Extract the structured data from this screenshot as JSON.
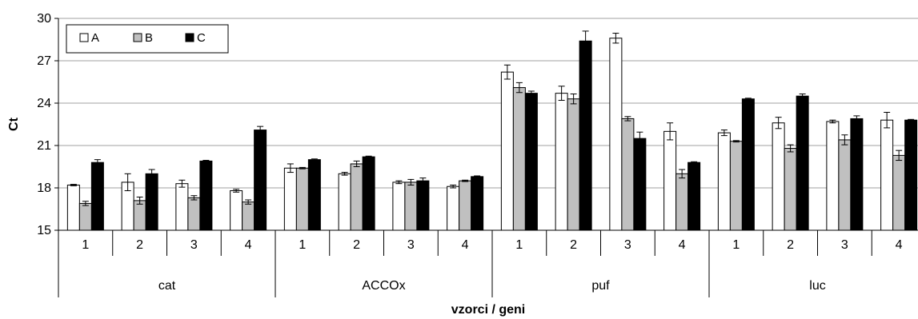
{
  "chart_data": {
    "type": "bar",
    "title": "",
    "xlabel": "vzorci / geni",
    "ylabel": "Ct",
    "ylim": [
      15,
      30
    ],
    "yticks": [
      "15",
      "18",
      "21",
      "24",
      "27",
      "30"
    ],
    "grid": "horizontal",
    "legend_position": "top-left",
    "groups": [
      "cat",
      "ACCOx",
      "puf",
      "luc"
    ],
    "samples": [
      "1",
      "2",
      "3",
      "4"
    ],
    "categories": [
      "1",
      "2",
      "3",
      "4",
      "1",
      "2",
      "3",
      "4",
      "1",
      "2",
      "3",
      "4",
      "1",
      "2",
      "3",
      "4"
    ],
    "series": [
      {
        "name": "A",
        "color": "#ffffff",
        "values": [
          18.2,
          18.4,
          18.3,
          17.8,
          19.4,
          19.0,
          18.4,
          18.1,
          26.2,
          24.7,
          28.6,
          22.0,
          21.9,
          22.6,
          22.7,
          22.8
        ],
        "errors": [
          0.05,
          0.6,
          0.25,
          0.1,
          0.3,
          0.1,
          0.1,
          0.1,
          0.5,
          0.5,
          0.35,
          0.6,
          0.2,
          0.4,
          0.1,
          0.55
        ]
      },
      {
        "name": "B",
        "color": "#c0c0c0",
        "values": [
          16.9,
          17.1,
          17.3,
          17.0,
          19.4,
          19.7,
          18.4,
          18.5,
          25.1,
          24.3,
          22.9,
          19.0,
          21.3,
          20.8,
          21.4,
          20.3
        ],
        "errors": [
          0.15,
          0.25,
          0.15,
          0.15,
          0.05,
          0.2,
          0.2,
          0.05,
          0.35,
          0.35,
          0.15,
          0.3,
          0.05,
          0.25,
          0.35,
          0.35
        ]
      },
      {
        "name": "C",
        "color": "#000000",
        "values": [
          19.8,
          19.0,
          19.9,
          22.1,
          20.0,
          20.2,
          18.5,
          18.8,
          24.7,
          28.4,
          21.5,
          19.8,
          24.3,
          24.5,
          22.9,
          22.8
        ],
        "errors": [
          0.2,
          0.3,
          0.05,
          0.25,
          0.05,
          0.05,
          0.2,
          0.05,
          0.15,
          0.7,
          0.45,
          0.05,
          0.05,
          0.15,
          0.2,
          0.05
        ]
      }
    ]
  }
}
